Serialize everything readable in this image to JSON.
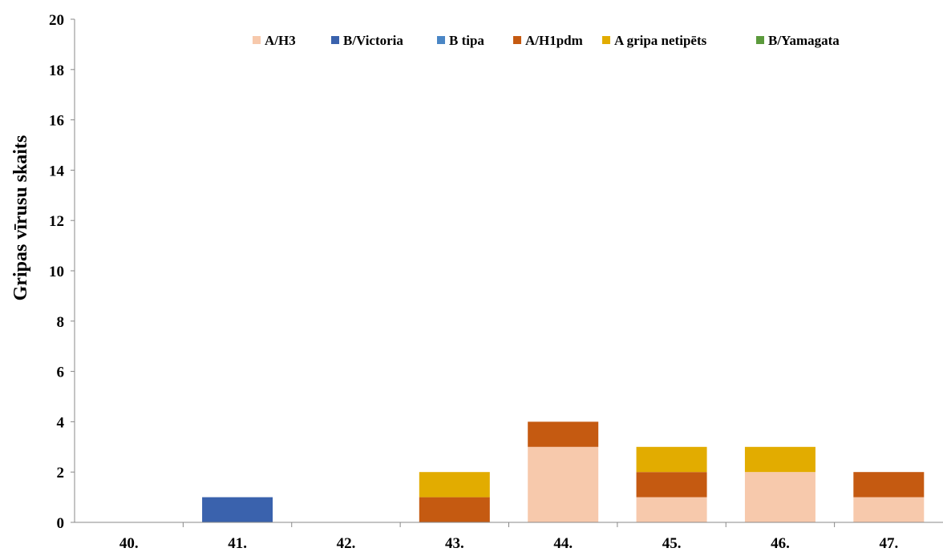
{
  "chart_data": {
    "type": "bar",
    "stacked": true,
    "ylabel": "Gripas vīrusu skaits",
    "xlabel": "",
    "ylim": [
      0,
      20
    ],
    "yticks": [
      "0",
      "2",
      "4",
      "6",
      "8",
      "10",
      "12",
      "14",
      "16",
      "18",
      "20"
    ],
    "categories": [
      "40.",
      "41.",
      "42.",
      "43.",
      "44.",
      "45.",
      "46.",
      "47."
    ],
    "legend_position": "top",
    "grid": false,
    "series": [
      {
        "name": "A/H3",
        "color": "#F7C9AC",
        "values": [
          0,
          0,
          0,
          0,
          3,
          1,
          2,
          1
        ]
      },
      {
        "name": "B/Victoria",
        "color": "#3A62AD",
        "values": [
          0,
          1,
          0,
          0,
          0,
          0,
          0,
          0
        ]
      },
      {
        "name": "B tipa",
        "color": "#4A86C5",
        "values": [
          0,
          0,
          0,
          0,
          0,
          0,
          0,
          0
        ]
      },
      {
        "name": "A/H1pdm",
        "color": "#C55A11",
        "values": [
          0,
          0,
          0,
          1,
          1,
          1,
          0,
          1
        ]
      },
      {
        "name": "A gripa netipēts",
        "color": "#E2AC00",
        "values": [
          0,
          0,
          0,
          1,
          0,
          1,
          1,
          0
        ]
      },
      {
        "name": "B/Yamagata",
        "color": "#5B9A3C",
        "values": [
          0,
          0,
          0,
          0,
          0,
          0,
          0,
          0
        ]
      }
    ]
  }
}
